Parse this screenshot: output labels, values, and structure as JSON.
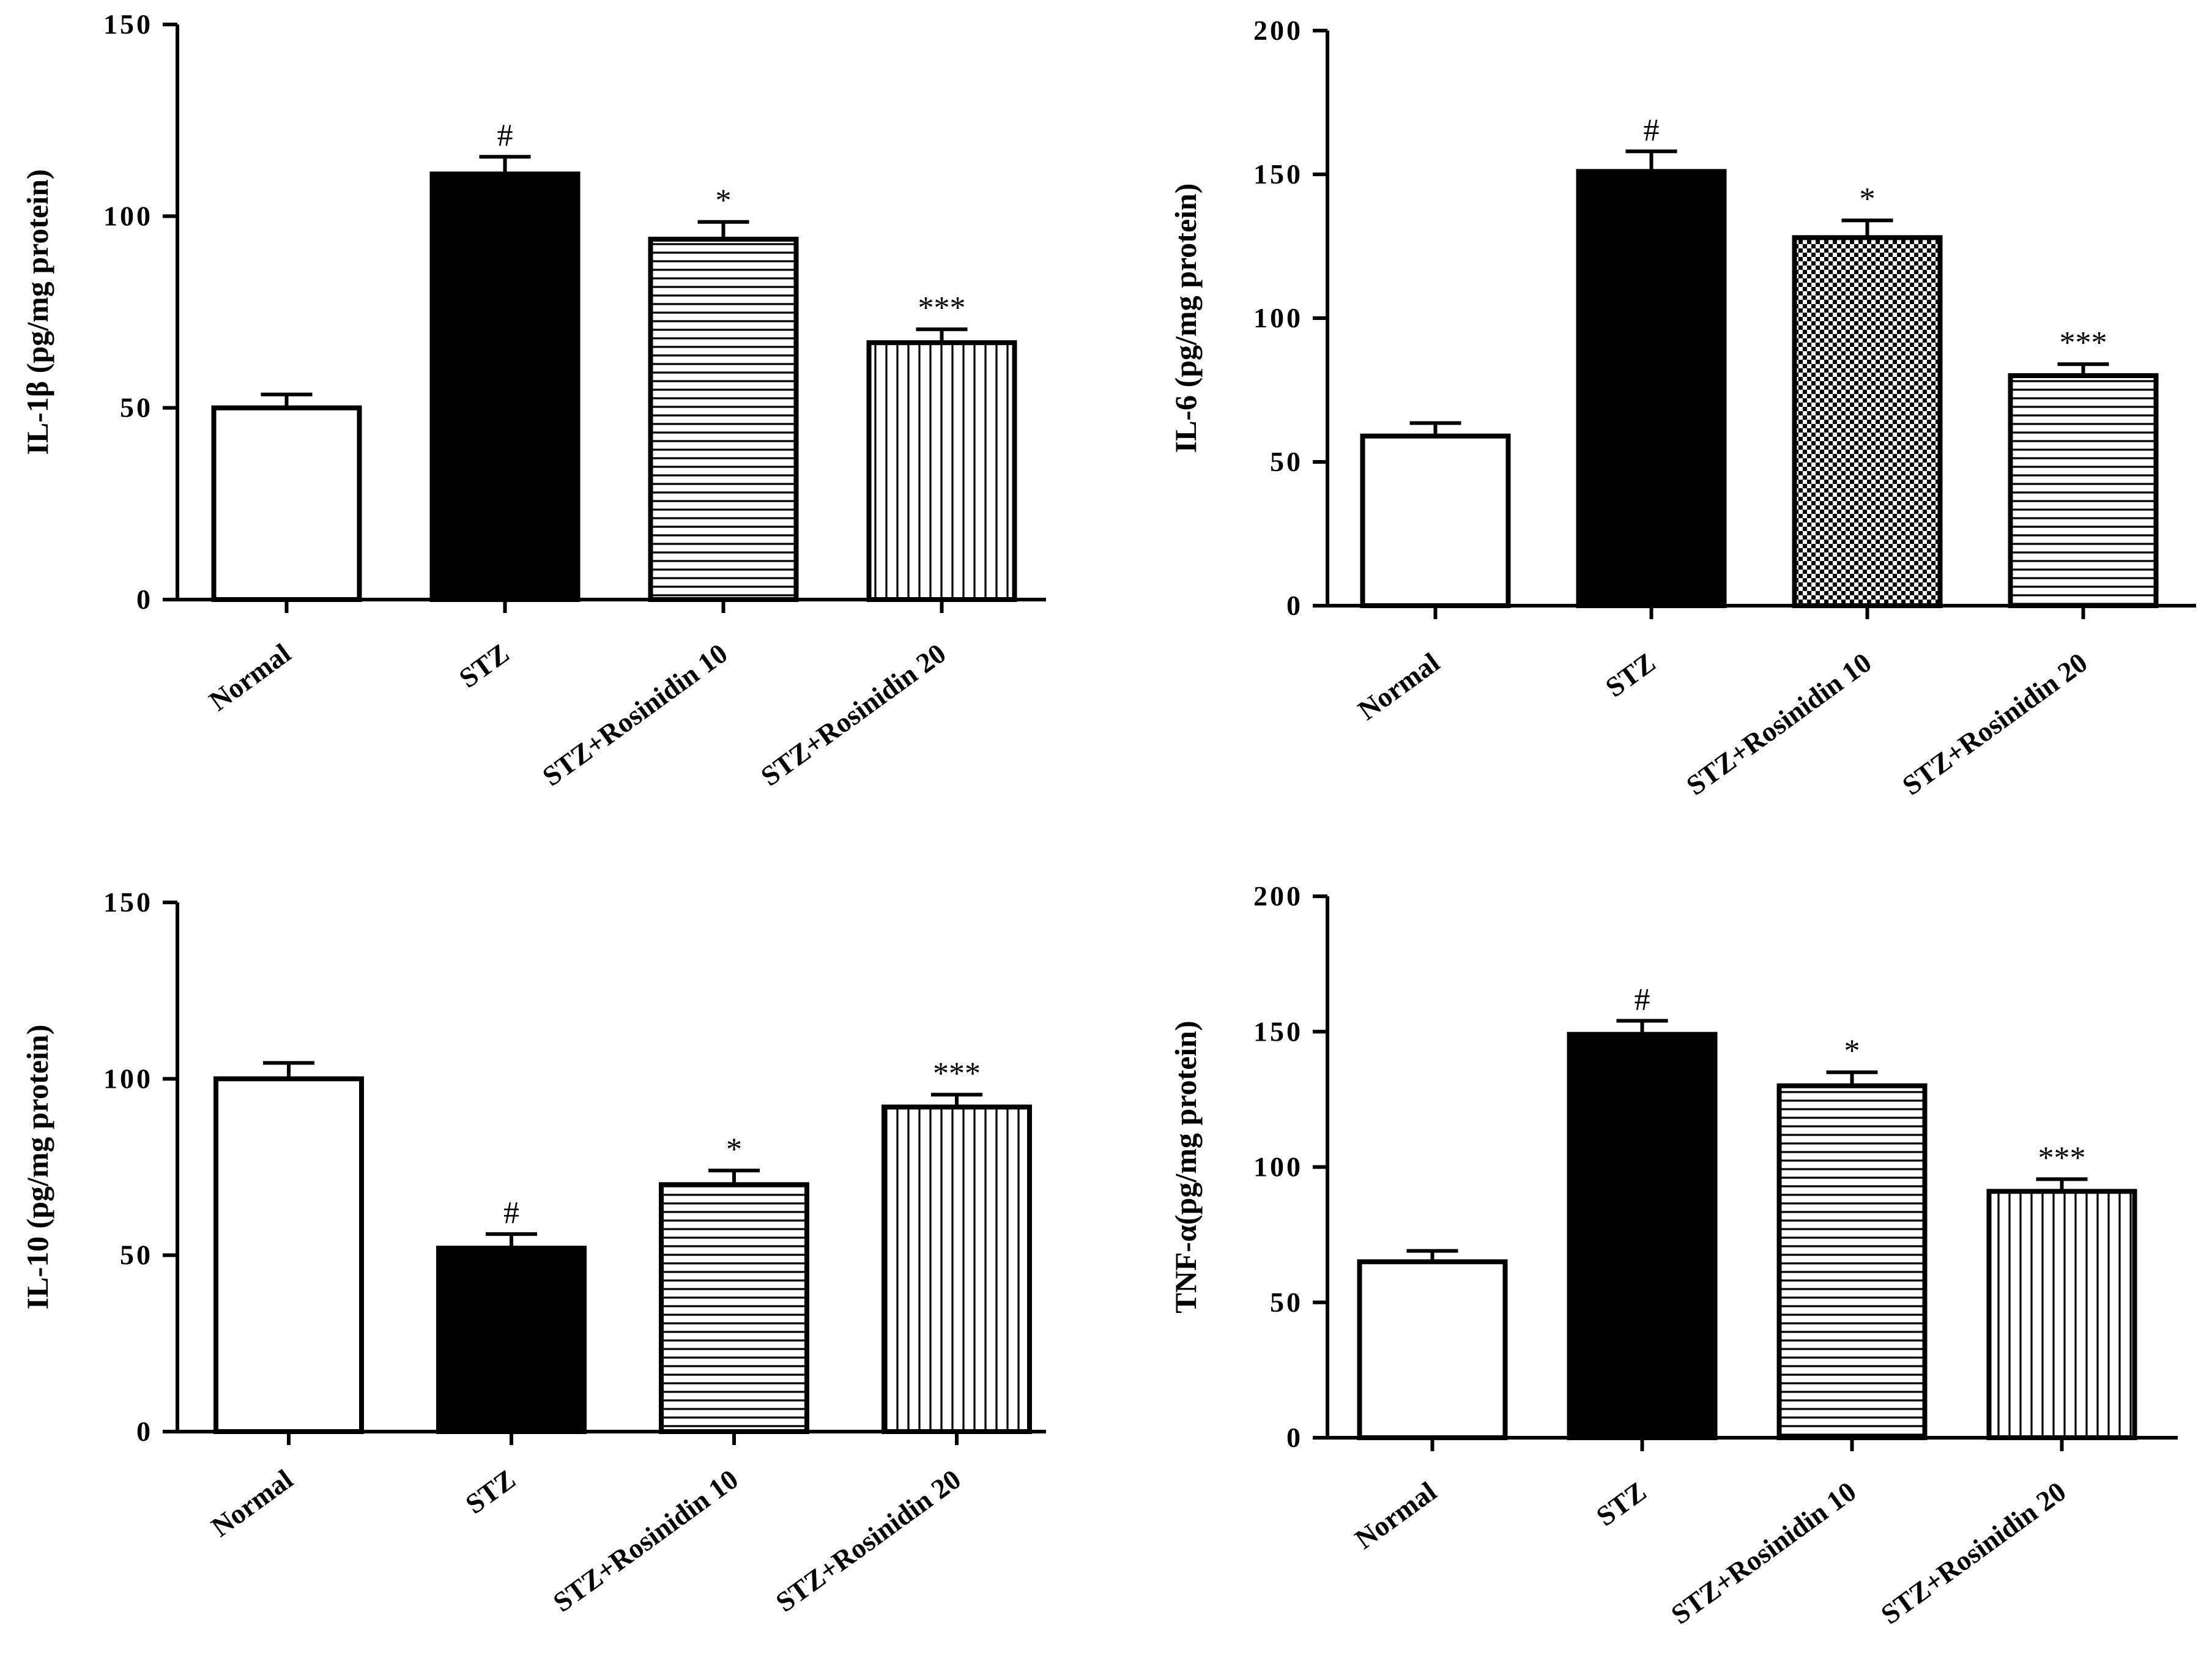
{
  "colors": {
    "ink": "#000000",
    "background": "#ffffff"
  },
  "chart_data": [
    {
      "type": "bar",
      "panel": "top-left",
      "title": "",
      "xlabel": "",
      "ylabel": "IL-1β (pg/mg protein)",
      "ylim": [
        0,
        150
      ],
      "yticks": [
        "0",
        "50",
        "100",
        "150"
      ],
      "categories": [
        "Normal",
        "STZ",
        "STZ+Rosinidin 10",
        "STZ+Rosinidin 20"
      ],
      "values": [
        50,
        111,
        94,
        67
      ],
      "errors": [
        3.5,
        4.5,
        4.5,
        3.5
      ],
      "patterns": [
        "white",
        "black",
        "horizontal-lines",
        "vertical-lines"
      ],
      "significance": [
        "",
        "#",
        "*",
        "***"
      ]
    },
    {
      "type": "bar",
      "panel": "top-right",
      "title": "",
      "xlabel": "",
      "ylabel": "IL-6 (pg/mg protein)",
      "ylim": [
        0,
        200
      ],
      "yticks": [
        "0",
        "50",
        "100",
        "150",
        "200"
      ],
      "categories": [
        "Normal",
        "STZ",
        "STZ+Rosinidin 10",
        "STZ+Rosinidin 20"
      ],
      "values": [
        59,
        151,
        128,
        80
      ],
      "errors": [
        4.5,
        7,
        6,
        4
      ],
      "patterns": [
        "white",
        "black",
        "checkerboard",
        "horizontal-lines"
      ],
      "significance": [
        "",
        "#",
        "*",
        "***"
      ]
    },
    {
      "type": "bar",
      "panel": "bottom-left",
      "title": "",
      "xlabel": "",
      "ylabel": "IL-10 (pg/mg protein)",
      "ylim": [
        0,
        150
      ],
      "yticks": [
        "0",
        "50",
        "100",
        "150"
      ],
      "categories": [
        "Normal",
        "STZ",
        "STZ+Rosinidin 10",
        "STZ+Rosinidin 20"
      ],
      "values": [
        100,
        52,
        70,
        92
      ],
      "errors": [
        4.5,
        4,
        4,
        3.5
      ],
      "patterns": [
        "white",
        "black",
        "horizontal-lines",
        "vertical-lines"
      ],
      "significance": [
        "",
        "#",
        "*",
        "***"
      ]
    },
    {
      "type": "bar",
      "panel": "bottom-right",
      "title": "",
      "xlabel": "",
      "ylabel": "TNF-α(pg/mg protein)",
      "ylim": [
        0,
        200
      ],
      "yticks": [
        "0",
        "50",
        "100",
        "150",
        "200"
      ],
      "categories": [
        "Normal",
        "STZ",
        "STZ+Rosinidin 10",
        "STZ+Rosinidin 20"
      ],
      "values": [
        65,
        149,
        130,
        91
      ],
      "errors": [
        4,
        5,
        5,
        4.5
      ],
      "patterns": [
        "white",
        "black",
        "horizontal-lines",
        "vertical-lines"
      ],
      "significance": [
        "",
        "#",
        "*",
        "***"
      ]
    }
  ]
}
